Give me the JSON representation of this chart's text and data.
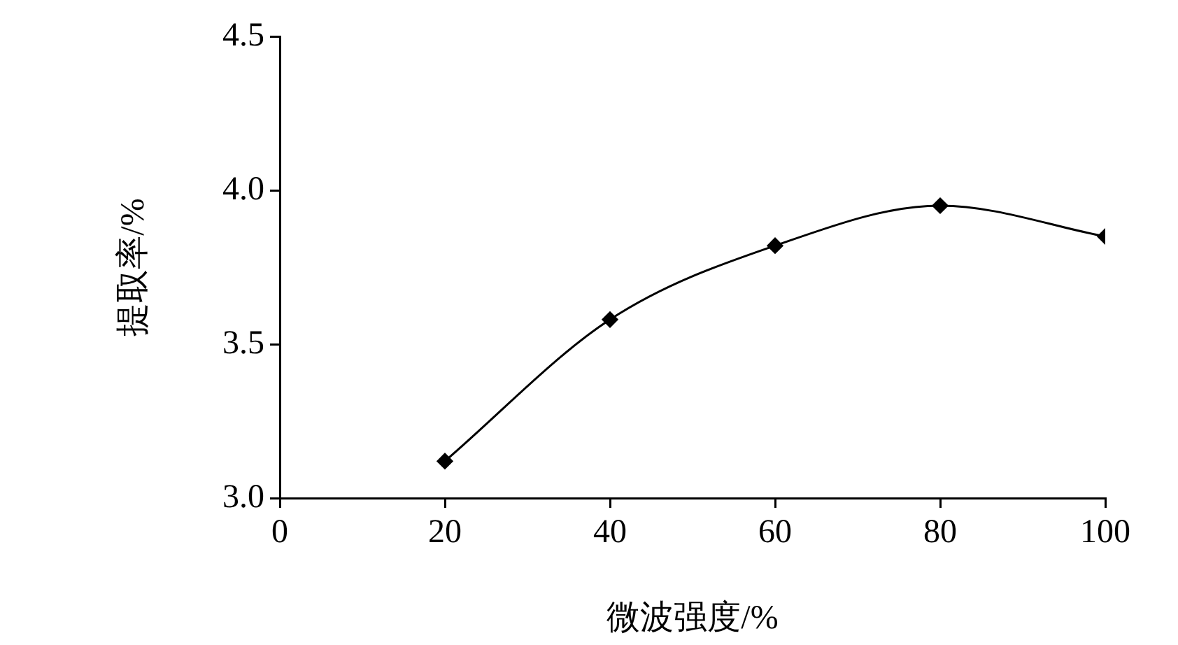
{
  "chart_data": {
    "type": "line",
    "xlabel": "微波强度/%",
    "ylabel": "提取率/%",
    "x": [
      20,
      40,
      60,
      80,
      100
    ],
    "series": [
      {
        "color": "#000000",
        "values": [
          3.12,
          3.58,
          3.82,
          3.95,
          3.85
        ]
      }
    ],
    "xlim": [
      0,
      100
    ],
    "xticks": [
      0,
      20,
      40,
      60,
      80,
      100
    ],
    "ylim": [
      3.0,
      4.5
    ],
    "yticks": [
      {
        "value": 3.0,
        "label": "3.0"
      },
      3.5,
      {
        "value": 4.0,
        "label": "4.0"
      },
      4.5
    ],
    "grid": false,
    "legend": false,
    "marker": "diamond",
    "line_style": "solid"
  }
}
